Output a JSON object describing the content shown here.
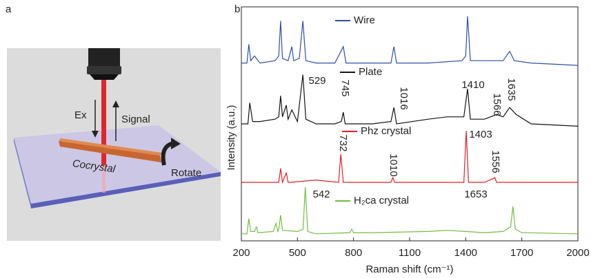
{
  "panel_a": {
    "label": "a",
    "excitation": "Ex",
    "signal": "Signal",
    "sample": "Cocrystal",
    "rotate": "Rotate"
  },
  "chart_data": {
    "type": "line",
    "panel_label": "b",
    "x_label": "Raman shift (cm⁻¹)",
    "y_label": "Intensity (a.u.)",
    "xlim": [
      200,
      2000
    ],
    "xticks": [
      200,
      500,
      800,
      1100,
      1400,
      1700,
      2000
    ],
    "ylim": [
      0,
      100
    ],
    "series": [
      {
        "name": "Wire",
        "color": "#2a4fa8",
        "x": [
          200,
          230,
          240,
          250,
          270,
          300,
          380,
          400,
          410,
          420,
          450,
          470,
          480,
          510,
          529,
          545,
          600,
          700,
          745,
          760,
          900,
          1000,
          1016,
          1030,
          1200,
          1380,
          1400,
          1410,
          1425,
          1500,
          1600,
          1635,
          1660,
          1750,
          2000
        ],
        "values": [
          76,
          76,
          84,
          77,
          79,
          76,
          77,
          79,
          94,
          78,
          77,
          83,
          77,
          78,
          94,
          77,
          76,
          76,
          83,
          76,
          76,
          76,
          83,
          76,
          76,
          77,
          79,
          96,
          77,
          77,
          77,
          81,
          77,
          76,
          75
        ],
        "annotations": []
      },
      {
        "name": "Plate",
        "color": "#111111",
        "x": [
          200,
          235,
          245,
          260,
          300,
          380,
          400,
          410,
          420,
          440,
          450,
          470,
          500,
          529,
          545,
          600,
          700,
          735,
          745,
          755,
          900,
          1000,
          1016,
          1030,
          1200,
          1300,
          1390,
          1410,
          1425,
          1500,
          1566,
          1600,
          1635,
          1670,
          1750,
          2000
        ],
        "values": [
          50,
          50,
          59,
          51,
          51,
          52,
          53,
          62,
          53,
          58,
          52,
          56,
          51,
          71,
          52,
          50,
          50,
          51,
          55,
          50,
          50,
          51,
          57,
          50,
          52,
          53,
          53,
          65,
          52,
          52,
          54,
          53,
          57,
          54,
          50,
          49
        ],
        "annotations": [
          {
            "text": "529",
            "color": "#3aa335",
            "rotated": false
          },
          {
            "text": "745",
            "color": "#e02020",
            "rotated": true
          },
          {
            "text": "1016",
            "color": "#e02020",
            "rotated": true
          },
          {
            "text": "1410",
            "color": "#e02020",
            "rotated": false
          },
          {
            "text": "1566",
            "color": "#e02020",
            "rotated": true
          },
          {
            "text": "1635",
            "color": "#3aa335",
            "rotated": true
          }
        ]
      },
      {
        "name": "Phz crystal",
        "color": "#e02020",
        "x": [
          200,
          400,
          410,
          420,
          440,
          450,
          460,
          600,
          720,
          732,
          745,
          900,
          1000,
          1010,
          1020,
          1300,
          1390,
          1403,
          1415,
          1500,
          1556,
          1565,
          1700,
          2000
        ],
        "values": [
          25,
          25,
          31,
          25,
          29,
          25,
          25,
          26,
          25,
          37,
          25,
          25,
          25,
          27,
          25,
          25,
          25,
          47,
          25,
          25,
          27,
          25,
          25,
          25
        ],
        "annotations": [
          {
            "text": "732",
            "color": "#222222",
            "rotated": true
          },
          {
            "text": "1010",
            "color": "#222222",
            "rotated": true
          },
          {
            "text": "1403",
            "color": "#222222",
            "rotated": false
          },
          {
            "text": "1556",
            "color": "#222222",
            "rotated": true
          }
        ]
      },
      {
        "name": "H₂ca crystal",
        "color": "#6dbf3f",
        "x": [
          200,
          230,
          240,
          250,
          270,
          280,
          290,
          370,
          385,
          395,
          400,
          410,
          420,
          500,
          530,
          542,
          555,
          600,
          780,
          790,
          800,
          900,
          1200,
          1300,
          1400,
          1500,
          1600,
          1640,
          1653,
          1665,
          1700,
          2000
        ],
        "values": [
          3,
          3,
          9.5,
          4,
          4,
          6,
          3.5,
          4,
          7.4,
          4,
          5,
          11,
          4.5,
          4,
          5,
          23,
          4,
          3,
          3.5,
          5,
          3.5,
          3.5,
          4,
          4.5,
          4,
          3.5,
          4,
          6,
          14.7,
          5,
          3.5,
          3
        ],
        "annotations": [
          {
            "text": "542",
            "color": "#222222",
            "rotated": false
          },
          {
            "text": "1653",
            "color": "#222222",
            "rotated": false
          }
        ]
      }
    ]
  }
}
